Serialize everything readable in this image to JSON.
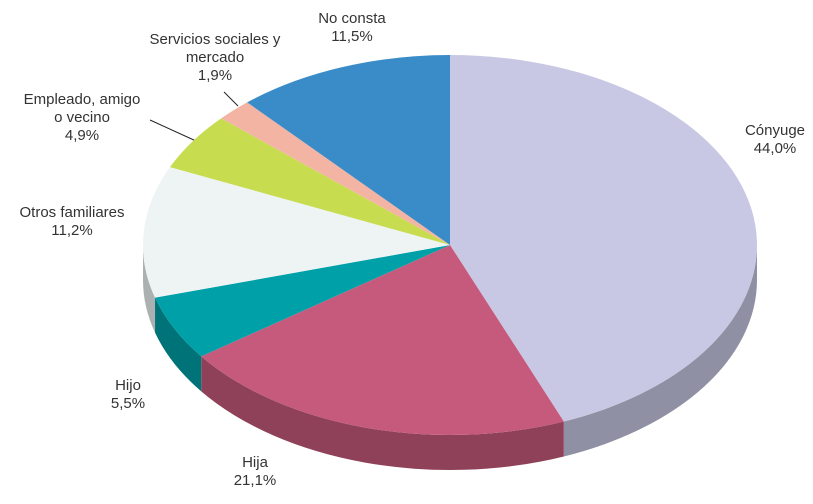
{
  "chart_data": {
    "type": "pie3d",
    "categories": [
      "Cónyuge",
      "Hija",
      "Hijo",
      "Otros familiares",
      "Empleado, amigo o vecino",
      "Servicios sociales y mercado",
      "No consta"
    ],
    "values": [
      44.0,
      21.1,
      5.5,
      11.2,
      4.9,
      1.9,
      11.5
    ],
    "value_labels": [
      "44,0%",
      "21,1%",
      "5,5%",
      "11,2%",
      "4,9%",
      "1,9%",
      "11,5%"
    ],
    "colors": [
      "#c8c8e4",
      "#c65a7c",
      "#00a0a8",
      "#eef4f4",
      "#c8dc50",
      "#f4b4a4",
      "#3a8cc8"
    ]
  }
}
